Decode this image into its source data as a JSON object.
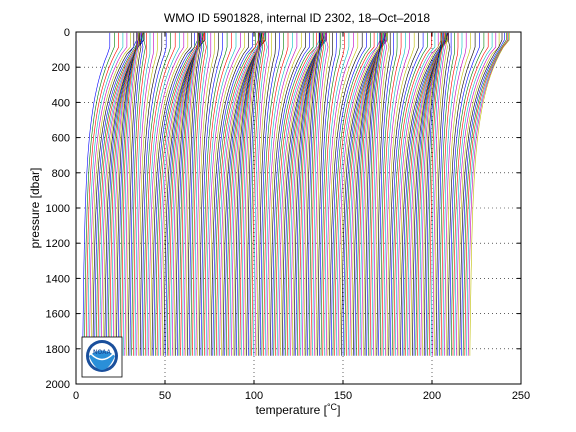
{
  "chart_data": {
    "type": "line",
    "title": "WMO ID 5901828, internal ID 2302, 18–Oct–2018",
    "xlabel": "temperature [",
    "xlabel_unit": "°C",
    "xlabel_close": "]",
    "ylabel": "pressure [dbar]",
    "xlim": [
      0,
      250
    ],
    "ylim": [
      0,
      2000
    ],
    "y_reversed": true,
    "x_ticks": [
      0,
      50,
      100,
      150,
      200,
      250
    ],
    "y_ticks": [
      0,
      200,
      400,
      600,
      800,
      1000,
      1200,
      1400,
      1600,
      1800,
      2000
    ],
    "grid": true,
    "profiles": {
      "count": 230,
      "offset_step": 0.95,
      "first_deep_temperature": 3.5,
      "surface_temperature_range": [
        10,
        28
      ],
      "max_pressure": 1840,
      "cycle_colors": [
        "#0000ff",
        "#008000",
        "#ff0000",
        "#00bfbf",
        "#bf00bf",
        "#bfbf00",
        "#000000"
      ]
    },
    "logo": "noaa-logo"
  }
}
